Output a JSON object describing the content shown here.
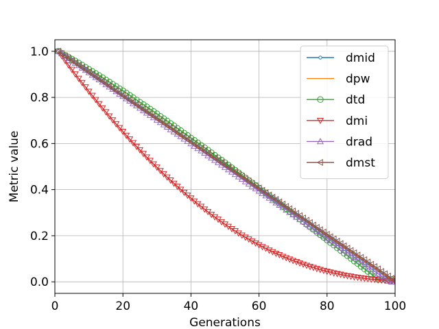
{
  "chart_data": {
    "type": "line",
    "xlabel": "Generations",
    "ylabel": "Metric value",
    "xlim": [
      0,
      100
    ],
    "ylim": [
      -0.05,
      1.05
    ],
    "xticks": [
      0,
      20,
      40,
      60,
      80,
      100
    ],
    "yticks": [
      0.0,
      0.2,
      0.4,
      0.6,
      0.8,
      1.0
    ],
    "xtick_labels": [
      "0",
      "20",
      "40",
      "60",
      "80",
      "100"
    ],
    "ytick_labels": [
      "0.0",
      "0.2",
      "0.4",
      "0.6",
      "0.8",
      "1.0"
    ],
    "grid": true,
    "legend_position": "top-right",
    "x": [
      1,
      2,
      3,
      4,
      5,
      6,
      7,
      8,
      9,
      10,
      11,
      12,
      13,
      14,
      15,
      16,
      17,
      18,
      19,
      20,
      21,
      22,
      23,
      24,
      25,
      26,
      27,
      28,
      29,
      30,
      31,
      32,
      33,
      34,
      35,
      36,
      37,
      38,
      39,
      40,
      41,
      42,
      43,
      44,
      45,
      46,
      47,
      48,
      49,
      50,
      51,
      52,
      53,
      54,
      55,
      56,
      57,
      58,
      59,
      60,
      61,
      62,
      63,
      64,
      65,
      66,
      67,
      68,
      69,
      70,
      71,
      72,
      73,
      74,
      75,
      76,
      77,
      78,
      79,
      80,
      81,
      82,
      83,
      84,
      85,
      86,
      87,
      88,
      89,
      90,
      91,
      92,
      93,
      94,
      95,
      96,
      97,
      98,
      99,
      100
    ],
    "series": [
      {
        "name": "dmid",
        "color": "#1f77b4",
        "marker": "point",
        "values": [
          1.0,
          0.99,
          0.98,
          0.97,
          0.96,
          0.95,
          0.94,
          0.929,
          0.919,
          0.909,
          0.899,
          0.889,
          0.879,
          0.869,
          0.859,
          0.849,
          0.838,
          0.828,
          0.818,
          0.808,
          0.798,
          0.788,
          0.778,
          0.768,
          0.758,
          0.747,
          0.737,
          0.727,
          0.717,
          0.707,
          0.697,
          0.687,
          0.677,
          0.667,
          0.657,
          0.646,
          0.636,
          0.626,
          0.616,
          0.606,
          0.596,
          0.586,
          0.576,
          0.566,
          0.556,
          0.545,
          0.535,
          0.525,
          0.515,
          0.505,
          0.495,
          0.485,
          0.475,
          0.465,
          0.455,
          0.444,
          0.434,
          0.424,
          0.414,
          0.404,
          0.394,
          0.384,
          0.374,
          0.364,
          0.354,
          0.343,
          0.333,
          0.323,
          0.313,
          0.303,
          0.293,
          0.283,
          0.273,
          0.263,
          0.253,
          0.242,
          0.232,
          0.222,
          0.212,
          0.202,
          0.192,
          0.182,
          0.172,
          0.162,
          0.152,
          0.141,
          0.131,
          0.121,
          0.111,
          0.101,
          0.091,
          0.081,
          0.071,
          0.061,
          0.051,
          0.04,
          0.03,
          0.02,
          0.01,
          0.0
        ]
      },
      {
        "name": "dpw",
        "color": "#ff7f0e",
        "marker": "none",
        "values": [
          1.0,
          0.99,
          0.98,
          0.97,
          0.96,
          0.95,
          0.94,
          0.929,
          0.919,
          0.909,
          0.899,
          0.889,
          0.879,
          0.869,
          0.859,
          0.849,
          0.838,
          0.828,
          0.818,
          0.808,
          0.798,
          0.788,
          0.778,
          0.768,
          0.758,
          0.747,
          0.737,
          0.727,
          0.717,
          0.707,
          0.697,
          0.687,
          0.677,
          0.667,
          0.657,
          0.646,
          0.636,
          0.626,
          0.616,
          0.606,
          0.596,
          0.586,
          0.576,
          0.566,
          0.556,
          0.545,
          0.535,
          0.525,
          0.515,
          0.505,
          0.495,
          0.485,
          0.475,
          0.465,
          0.455,
          0.444,
          0.434,
          0.424,
          0.414,
          0.404,
          0.394,
          0.384,
          0.374,
          0.364,
          0.354,
          0.343,
          0.333,
          0.323,
          0.313,
          0.303,
          0.293,
          0.283,
          0.273,
          0.263,
          0.253,
          0.242,
          0.232,
          0.222,
          0.212,
          0.202,
          0.192,
          0.182,
          0.172,
          0.162,
          0.152,
          0.141,
          0.131,
          0.121,
          0.111,
          0.101,
          0.091,
          0.081,
          0.071,
          0.061,
          0.051,
          0.04,
          0.03,
          0.02,
          0.01,
          0.0
        ]
      },
      {
        "name": "dtd",
        "color": "#2ca02c",
        "marker": "circle",
        "values": [
          1.0,
          0.992,
          0.983,
          0.975,
          0.966,
          0.958,
          0.949,
          0.94,
          0.931,
          0.922,
          0.913,
          0.904,
          0.895,
          0.886,
          0.876,
          0.867,
          0.857,
          0.848,
          0.838,
          0.829,
          0.819,
          0.809,
          0.799,
          0.789,
          0.779,
          0.769,
          0.759,
          0.749,
          0.739,
          0.729,
          0.718,
          0.708,
          0.698,
          0.687,
          0.677,
          0.666,
          0.656,
          0.645,
          0.635,
          0.624,
          0.614,
          0.603,
          0.592,
          0.582,
          0.571,
          0.56,
          0.549,
          0.538,
          0.528,
          0.517,
          0.506,
          0.495,
          0.484,
          0.473,
          0.462,
          0.451,
          0.44,
          0.429,
          0.418,
          0.407,
          0.395,
          0.384,
          0.373,
          0.362,
          0.351,
          0.34,
          0.328,
          0.317,
          0.306,
          0.295,
          0.283,
          0.272,
          0.261,
          0.249,
          0.238,
          0.227,
          0.215,
          0.204,
          0.193,
          0.181,
          0.17,
          0.159,
          0.147,
          0.136,
          0.124,
          0.113,
          0.102,
          0.09,
          0.079,
          0.067,
          0.056,
          0.045,
          0.033,
          0.022,
          0.01,
          0.01,
          0.01,
          0.01,
          0.01,
          0.01
        ]
      },
      {
        "name": "dmi",
        "color": "#d62728",
        "marker": "triangle-down",
        "values": [
          1.0,
          0.98,
          0.96,
          0.94,
          0.921,
          0.901,
          0.882,
          0.864,
          0.845,
          0.826,
          0.808,
          0.79,
          0.772,
          0.754,
          0.737,
          0.719,
          0.702,
          0.685,
          0.668,
          0.652,
          0.635,
          0.619,
          0.603,
          0.587,
          0.572,
          0.556,
          0.541,
          0.526,
          0.511,
          0.497,
          0.482,
          0.468,
          0.454,
          0.441,
          0.427,
          0.414,
          0.401,
          0.388,
          0.375,
          0.363,
          0.35,
          0.338,
          0.327,
          0.315,
          0.304,
          0.292,
          0.281,
          0.271,
          0.26,
          0.25,
          0.24,
          0.23,
          0.221,
          0.211,
          0.202,
          0.193,
          0.185,
          0.176,
          0.168,
          0.16,
          0.152,
          0.145,
          0.137,
          0.13,
          0.123,
          0.117,
          0.11,
          0.104,
          0.098,
          0.092,
          0.087,
          0.081,
          0.076,
          0.071,
          0.066,
          0.062,
          0.057,
          0.053,
          0.049,
          0.045,
          0.042,
          0.038,
          0.035,
          0.032,
          0.029,
          0.026,
          0.024,
          0.021,
          0.019,
          0.017,
          0.015,
          0.013,
          0.011,
          0.01,
          0.008,
          0.007,
          0.006,
          0.005,
          0.004,
          0.003
        ]
      },
      {
        "name": "drad",
        "color": "#9467bd",
        "marker": "triangle-up",
        "values": [
          1.0,
          0.99,
          0.98,
          0.969,
          0.959,
          0.949,
          0.939,
          0.928,
          0.918,
          0.908,
          0.897,
          0.887,
          0.877,
          0.867,
          0.856,
          0.846,
          0.836,
          0.826,
          0.815,
          0.805,
          0.795,
          0.785,
          0.774,
          0.764,
          0.754,
          0.743,
          0.733,
          0.723,
          0.713,
          0.702,
          0.692,
          0.682,
          0.672,
          0.661,
          0.651,
          0.641,
          0.631,
          0.62,
          0.61,
          0.6,
          0.589,
          0.579,
          0.569,
          0.559,
          0.548,
          0.538,
          0.528,
          0.518,
          0.507,
          0.497,
          0.487,
          0.477,
          0.466,
          0.456,
          0.446,
          0.435,
          0.425,
          0.415,
          0.405,
          0.394,
          0.384,
          0.374,
          0.364,
          0.353,
          0.343,
          0.333,
          0.323,
          0.312,
          0.302,
          0.292,
          0.281,
          0.271,
          0.261,
          0.251,
          0.24,
          0.23,
          0.22,
          0.21,
          0.199,
          0.189,
          0.179,
          0.168,
          0.158,
          0.148,
          0.138,
          0.127,
          0.117,
          0.107,
          0.097,
          0.086,
          0.076,
          0.066,
          0.056,
          0.045,
          0.035,
          0.025,
          0.014,
          0.004,
          0.0,
          0.0
        ]
      },
      {
        "name": "dmst",
        "color": "#8c564b",
        "marker": "triangle-left",
        "values": [
          1.0,
          0.99,
          0.98,
          0.97,
          0.96,
          0.95,
          0.94,
          0.93,
          0.92,
          0.91,
          0.9,
          0.89,
          0.88,
          0.87,
          0.86,
          0.85,
          0.839,
          0.829,
          0.819,
          0.809,
          0.799,
          0.789,
          0.779,
          0.769,
          0.759,
          0.749,
          0.739,
          0.729,
          0.719,
          0.709,
          0.699,
          0.689,
          0.679,
          0.669,
          0.659,
          0.648,
          0.638,
          0.628,
          0.618,
          0.608,
          0.598,
          0.588,
          0.578,
          0.568,
          0.558,
          0.548,
          0.538,
          0.528,
          0.518,
          0.508,
          0.498,
          0.488,
          0.478,
          0.468,
          0.458,
          0.448,
          0.437,
          0.427,
          0.417,
          0.407,
          0.397,
          0.387,
          0.377,
          0.367,
          0.357,
          0.347,
          0.337,
          0.327,
          0.317,
          0.307,
          0.297,
          0.287,
          0.277,
          0.267,
          0.257,
          0.246,
          0.236,
          0.226,
          0.216,
          0.206,
          0.196,
          0.186,
          0.176,
          0.166,
          0.156,
          0.146,
          0.136,
          0.126,
          0.116,
          0.106,
          0.096,
          0.086,
          0.076,
          0.066,
          0.056,
          0.045,
          0.035,
          0.025,
          0.015,
          0.005
        ]
      }
    ]
  }
}
